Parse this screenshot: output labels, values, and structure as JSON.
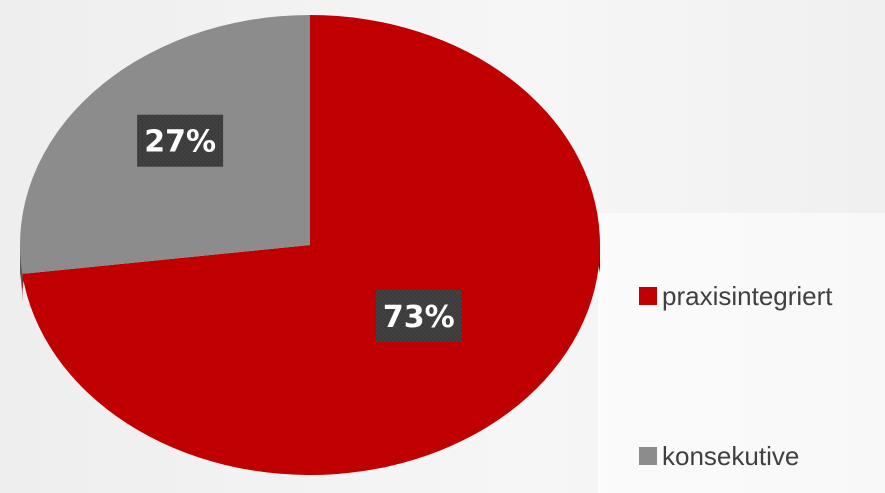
{
  "chart_data": {
    "type": "pie",
    "title": "",
    "slices": [
      {
        "name": "praxisintegriert",
        "value": 73,
        "label": "73%",
        "color": "#c00000",
        "side_color": "#7a0000"
      },
      {
        "name": "konsekutive",
        "value": 27,
        "label": "27%",
        "color": "#8c8c8c",
        "side_color": "#5a5a5a"
      }
    ],
    "legend": {
      "placement": "right",
      "entries": [
        {
          "name": "praxisintegriert",
          "color": "#c00000"
        },
        {
          "name": "konsekutive",
          "color": "#8c8c8c"
        }
      ]
    },
    "label_box_color": "#3c3c3c",
    "start_angle_deg": 90,
    "direction": "clockwise",
    "perspective": "3d-tilted"
  }
}
